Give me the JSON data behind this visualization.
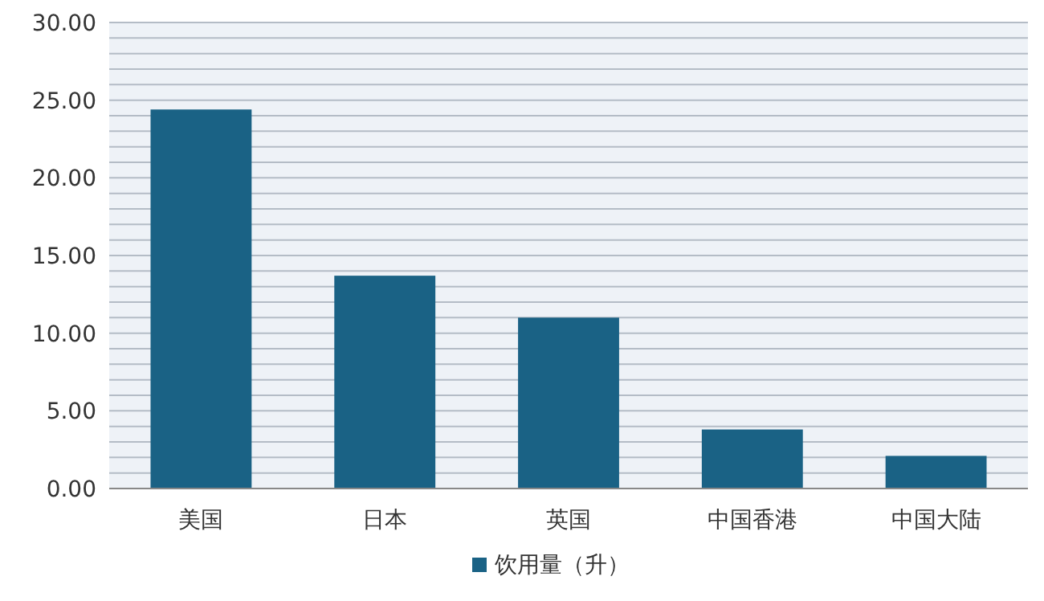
{
  "chart_data": {
    "type": "bar",
    "categories": [
      "美国",
      "日本",
      "英国",
      "中国香港",
      "中国大陆"
    ],
    "series": [
      {
        "name": "饮用量（升）",
        "color": "#1a6285",
        "values": [
          24.4,
          13.7,
          11.0,
          3.8,
          2.1
        ]
      }
    ],
    "ylim": [
      0,
      30
    ],
    "yticks": [
      "0.00",
      {
        "value": 1,
        "label": null
      },
      {
        "value": 2,
        "label": null
      },
      {
        "value": 3,
        "label": null
      },
      {
        "value": 4,
        "label": null
      },
      {
        "value": 5,
        "label": "5.00"
      },
      {
        "value": 6,
        "label": null
      },
      {
        "value": 7,
        "label": null
      },
      {
        "value": 8,
        "label": null
      },
      {
        "value": 9,
        "label": null
      },
      {
        "value": 10,
        "label": "10.00"
      },
      {
        "value": 11,
        "label": null
      },
      {
        "value": 12,
        "label": null
      },
      {
        "value": 13,
        "label": null
      },
      {
        "value": 14,
        "label": null
      },
      {
        "value": 15,
        "label": "15.00"
      },
      {
        "value": 16,
        "label": null
      },
      {
        "value": 17,
        "label": null
      },
      {
        "value": 18,
        "label": null
      },
      {
        "value": 19,
        "label": null
      },
      {
        "value": 20,
        "label": "20.00"
      },
      {
        "value": 21,
        "label": null
      },
      {
        "value": 22,
        "label": null
      },
      {
        "value": 23,
        "label": null
      },
      {
        "value": 24,
        "label": null
      },
      {
        "value": 25,
        "label": "25.00"
      },
      {
        "value": 26,
        "label": null
      },
      {
        "value": 27,
        "label": null
      },
      {
        "value": 28,
        "label": null
      },
      {
        "value": 29,
        "label": null
      },
      {
        "value": 30,
        "label": "30.00"
      }
    ],
    "grid": "y",
    "legend": "bottom"
  }
}
